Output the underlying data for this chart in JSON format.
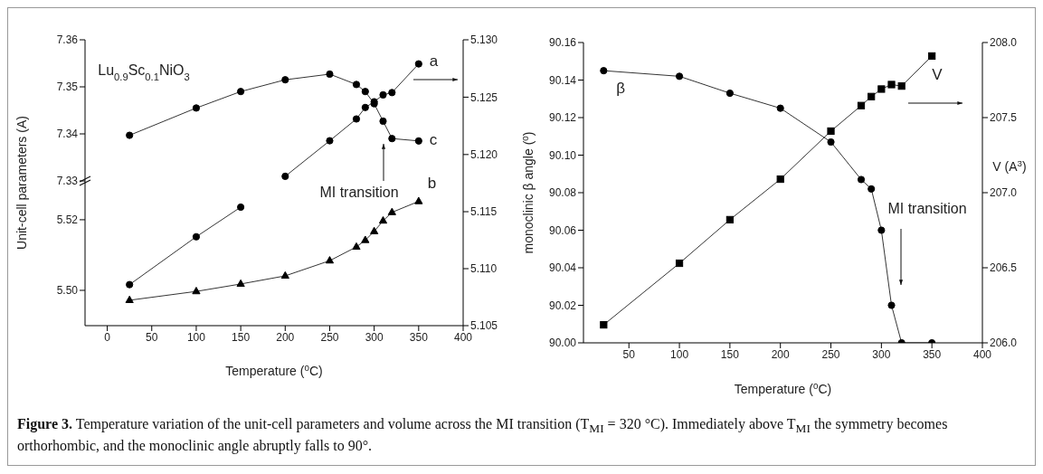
{
  "chart_data": [
    {
      "type": "line",
      "x": [
        25,
        100,
        150,
        200,
        250,
        280,
        290,
        300,
        310,
        320,
        350
      ],
      "xlim": [
        -25,
        400
      ],
      "xticks": [
        0,
        50,
        100,
        150,
        200,
        250,
        300,
        350,
        400
      ],
      "tick_labels": "y",
      "ylabel": "Unit-cell parameters (A)",
      "ylim": [
        7.33,
        7.36
      ],
      "yticks": [
        7.33,
        7.34,
        7.35,
        7.36
      ],
      "y2lim": [
        5.1177,
        5.13
      ],
      "y2ticks": [
        {
          "value": 5.12,
          "label": "5.120"
        },
        5.125,
        {
          "value": 5.13,
          "label": "5.130"
        }
      ],
      "annotations": [
        "Lu$_{0.9}$Sc$_{0.1}$NiO$_{3}$",
        "MI transition"
      ],
      "series": [
        {
          "name": "a",
          "color": "#000000",
          "marker": "circle",
          "axis": "y2",
          "values": [
            null,
            null,
            null,
            5.1181,
            5.1212,
            5.1231,
            5.1241,
            5.1246,
            5.1252,
            5.1254,
            5.1279
          ]
        },
        {
          "name": "c",
          "color": "#000000",
          "marker": "circle",
          "axis": "y",
          "values": [
            7.3397,
            7.3455,
            7.349,
            7.3515,
            7.3527,
            7.3505,
            7.349,
            7.3464,
            7.3427,
            7.339,
            7.3385
          ]
        }
      ]
    },
    {
      "type": "line",
      "x": [
        25,
        100,
        150,
        200,
        250,
        280,
        290,
        300,
        310,
        320,
        350
      ],
      "xlim": [
        -25,
        400
      ],
      "xticks": [
        0,
        50,
        100,
        150,
        200,
        250,
        300,
        350,
        400
      ],
      "xlabel": "Temperature ($^{0}$C)",
      "ylim": [
        5.49,
        5.531
      ],
      "yticks": [
        {
          "value": 5.5,
          "label": "5.50"
        },
        5.52
      ],
      "y2lim": [
        5.105,
        5.1177
      ],
      "y2ticks": [
        5.105,
        {
          "value": 5.11,
          "label": "5.110"
        },
        5.115
      ],
      "series": [
        {
          "color": "#000000",
          "marker": "circle",
          "axis": "y2",
          "values": [
            5.1086,
            5.1128,
            5.1154,
            null,
            null,
            null,
            null,
            null,
            null,
            null,
            null
          ]
        },
        {
          "name": "b",
          "color": "#000000",
          "marker": "triangle",
          "axis": "y",
          "values": [
            5.4972,
            5.4997,
            5.5018,
            5.5041,
            5.5084,
            5.5123,
            5.5142,
            5.5167,
            5.5197,
            5.5221,
            5.5252
          ]
        }
      ]
    },
    {
      "type": "line",
      "x": [
        25,
        100,
        150,
        200,
        250,
        280,
        290,
        300,
        310,
        320,
        350
      ],
      "xlim": [
        5,
        400
      ],
      "xticks": [
        50,
        100,
        150,
        200,
        250,
        300,
        350,
        400
      ],
      "xlabel": "Temperature ($^{0}$C)",
      "ylabel": "monoclinic β angle ($^{0}$)",
      "y2label": "V (A$^{3}$)",
      "ylim": [
        90,
        90.16
      ],
      "yticks": [
        {
          "value": 90,
          "label": "90.00"
        },
        90.02,
        90.04,
        90.06,
        90.08,
        {
          "value": 90.1,
          "label": "90.10"
        },
        90.12,
        90.14,
        90.16
      ],
      "y2lim": [
        206,
        208
      ],
      "y2ticks": [
        {
          "value": 206,
          "label": "206.0"
        },
        206.5,
        {
          "value": 207,
          "label": "207.0"
        },
        207.5,
        {
          "value": 208,
          "label": "208.0"
        }
      ],
      "annotations": [
        "MI transition"
      ],
      "series": [
        {
          "name": "β",
          "color": "#000000",
          "marker": "circle",
          "axis": "y",
          "values": [
            90.145,
            90.142,
            90.133,
            90.125,
            90.107,
            90.087,
            90.082,
            90.06,
            90.02,
            90.0,
            90.0
          ]
        },
        {
          "name": "V",
          "color": "#000000",
          "marker": "square",
          "axis": "y2",
          "values": [
            206.12,
            206.53,
            206.82,
            207.09,
            207.41,
            207.58,
            207.64,
            207.69,
            207.72,
            207.71,
            207.91
          ]
        }
      ]
    },
    {
      "type": "other",
      "annotations": [
        "Figure 3. Temperature variation of the unit-cell parameters and volume across the MI transition (T$_{MI}$ = 320 °C). Immediately above T$_{MI}$ the symmetry becomes orthorhombic, and the monoclinic angle abruptly falls to 90°."
      ]
    }
  ]
}
